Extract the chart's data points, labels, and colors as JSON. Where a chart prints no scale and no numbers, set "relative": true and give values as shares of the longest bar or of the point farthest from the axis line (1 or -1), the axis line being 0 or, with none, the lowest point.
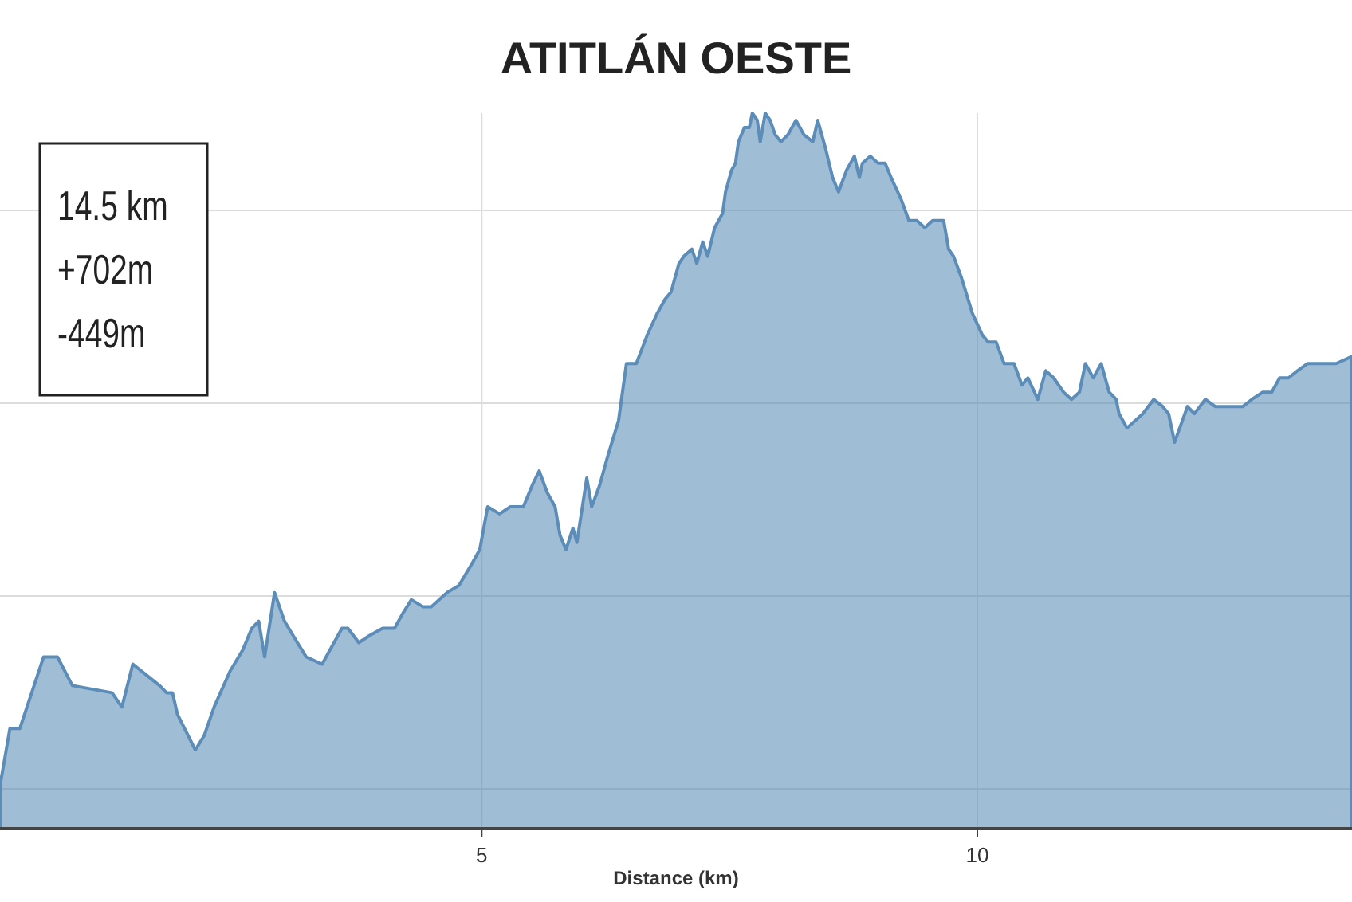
{
  "chart_data": {
    "type": "area",
    "title": "ATITLÁN OESTE",
    "xlabel": "Distance (km)",
    "relative": true,
    "grid": true,
    "xlim": [
      0.14,
      13.78
    ],
    "xticks": [
      5,
      10
    ],
    "annotations": [
      "14.5 km",
      "+702m",
      "-449m"
    ],
    "x": [
      0.14,
      0.24,
      0.34,
      0.58,
      0.72,
      0.87,
      1.27,
      1.37,
      1.48,
      1.75,
      1.82,
      1.88,
      1.93,
      2.11,
      2.2,
      2.3,
      2.46,
      2.59,
      2.68,
      2.75,
      2.81,
      2.91,
      3.01,
      3.14,
      3.23,
      3.39,
      3.59,
      3.65,
      3.76,
      3.87,
      4.0,
      4.12,
      4.2,
      4.29,
      4.41,
      4.49,
      4.65,
      4.77,
      4.9,
      4.98,
      5.06,
      5.18,
      5.29,
      5.42,
      5.51,
      5.58,
      5.66,
      5.74,
      5.79,
      5.85,
      5.92,
      5.96,
      6.06,
      6.11,
      6.19,
      6.27,
      6.38,
      6.46,
      6.56,
      6.67,
      6.77,
      6.85,
      6.91,
      6.99,
      7.04,
      7.12,
      7.17,
      7.23,
      7.28,
      7.35,
      7.43,
      7.46,
      7.52,
      7.56,
      7.59,
      7.65,
      7.7,
      7.73,
      7.78,
      7.81,
      7.86,
      7.91,
      7.96,
      8.02,
      8.09,
      8.17,
      8.25,
      8.34,
      8.39,
      8.47,
      8.54,
      8.6,
      8.68,
      8.76,
      8.81,
      8.84,
      8.92,
      9.0,
      9.07,
      9.13,
      9.23,
      9.31,
      9.39,
      9.47,
      9.55,
      9.63,
      9.66,
      9.71,
      9.76,
      9.84,
      9.95,
      10.05,
      10.11,
      10.19,
      10.27,
      10.32,
      10.37,
      10.45,
      10.51,
      10.61,
      10.69,
      10.77,
      10.87,
      10.95,
      11.03,
      11.09,
      11.17,
      11.25,
      11.33,
      11.4,
      11.43,
      11.51,
      11.59,
      11.67,
      11.78,
      11.87,
      11.93,
      11.99,
      12.12,
      12.19,
      12.3,
      12.4,
      12.52,
      12.6,
      12.68,
      12.77,
      12.88,
      12.97,
      13.05,
      13.14,
      13.23,
      13.33,
      13.49,
      13.62,
      13.78
    ],
    "series": [
      {
        "color": "#5b8db8",
        "values": [
          0.06,
          0.14,
          0.14,
          0.24,
          0.24,
          0.2,
          0.19,
          0.17,
          0.23,
          0.2,
          0.19,
          0.19,
          0.16,
          0.11,
          0.13,
          0.17,
          0.22,
          0.25,
          0.28,
          0.29,
          0.24,
          0.33,
          0.29,
          0.26,
          0.24,
          0.23,
          0.28,
          0.28,
          0.26,
          0.27,
          0.28,
          0.28,
          0.3,
          0.32,
          0.31,
          0.31,
          0.33,
          0.34,
          0.37,
          0.39,
          0.45,
          0.44,
          0.45,
          0.45,
          0.48,
          0.5,
          0.47,
          0.45,
          0.41,
          0.39,
          0.42,
          0.4,
          0.49,
          0.45,
          0.48,
          0.52,
          0.57,
          0.65,
          0.65,
          0.69,
          0.72,
          0.74,
          0.75,
          0.79,
          0.8,
          0.81,
          0.79,
          0.82,
          0.8,
          0.84,
          0.86,
          0.89,
          0.92,
          0.93,
          0.96,
          0.98,
          0.98,
          1.0,
          0.99,
          0.96,
          1.0,
          0.99,
          0.97,
          0.96,
          0.97,
          0.99,
          0.97,
          0.96,
          0.99,
          0.95,
          0.91,
          0.89,
          0.92,
          0.94,
          0.91,
          0.93,
          0.94,
          0.93,
          0.93,
          0.91,
          0.88,
          0.85,
          0.85,
          0.84,
          0.85,
          0.85,
          0.85,
          0.81,
          0.8,
          0.77,
          0.72,
          0.69,
          0.68,
          0.68,
          0.65,
          0.65,
          0.65,
          0.62,
          0.63,
          0.6,
          0.64,
          0.63,
          0.61,
          0.6,
          0.61,
          0.65,
          0.63,
          0.65,
          0.61,
          0.6,
          0.58,
          0.56,
          0.57,
          0.58,
          0.6,
          0.59,
          0.58,
          0.54,
          0.59,
          0.58,
          0.6,
          0.59,
          0.59,
          0.59,
          0.59,
          0.6,
          0.61,
          0.61,
          0.63,
          0.63,
          0.64,
          0.65,
          0.65,
          0.65,
          0.66
        ]
      }
    ]
  }
}
